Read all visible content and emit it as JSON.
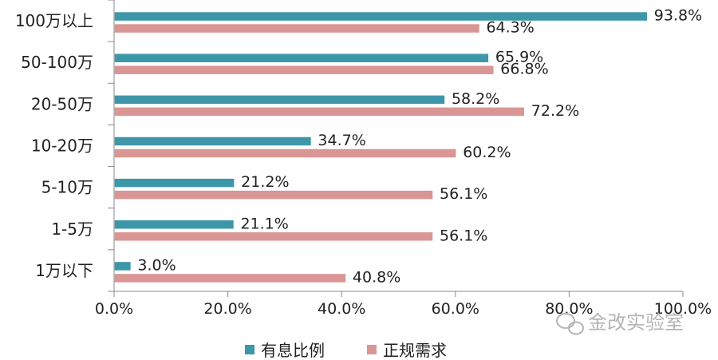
{
  "chart_data": {
    "type": "bar",
    "orientation": "horizontal",
    "categories": [
      "100万以上",
      "50-100万",
      "20-50万",
      "10-20万",
      "5-10万",
      "1-5万",
      "1万以下"
    ],
    "series": [
      {
        "name": "有息比例",
        "values": [
          93.8,
          65.9,
          58.2,
          34.7,
          21.2,
          21.1,
          3.0
        ],
        "labels": [
          "93.8%",
          "65.9%",
          "58.2%",
          "34.7%",
          "21.2%",
          "21.1%",
          "3.0%"
        ],
        "color": "#3d97a8"
      },
      {
        "name": "正规需求",
        "values": [
          64.3,
          66.8,
          72.2,
          60.2,
          56.1,
          56.1,
          40.8
        ],
        "labels": [
          "64.3%",
          "66.8%",
          "72.2%",
          "60.2%",
          "56.1%",
          "56.1%",
          "40.8%"
        ],
        "color": "#d99694"
      }
    ],
    "xlim": [
      0,
      100
    ],
    "xticks": [
      "0.0%",
      "20.0%",
      "40.0%",
      "60.0%",
      "80.0%",
      "100.0%"
    ],
    "title": "",
    "xlabel": "",
    "ylabel": "",
    "grid": false,
    "legend_position": "bottom"
  },
  "watermark": {
    "text": "金改实验室",
    "icon": "wechat-icon"
  }
}
